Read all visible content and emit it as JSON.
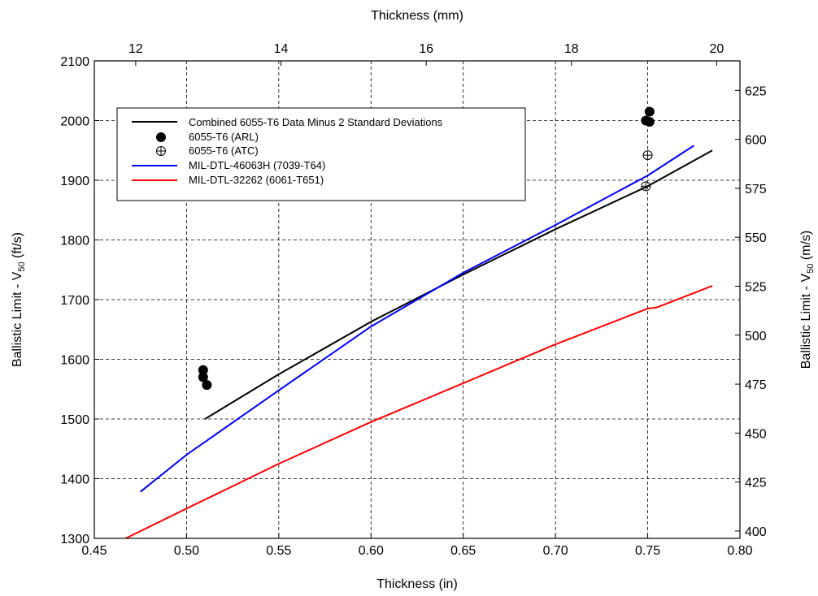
{
  "chart_data": {
    "type": "line",
    "title": "",
    "xlabel": "Thickness (in)",
    "x2label": "Thickness (mm)",
    "ylabel_main": "Ballistic Limit - V",
    "ylabel_sub": "50",
    "ylabel_unit": " (ft/s)",
    "y2label_main": "Ballistic Limit - V",
    "y2label_sub": "50",
    "y2label_unit": " (m/s)",
    "xlim": [
      0.45,
      0.8
    ],
    "ylim": [
      1300,
      2100
    ],
    "x2lim_mm": [
      11.43,
      20.32
    ],
    "y2lim_ms": [
      396.24,
      640.08
    ],
    "x_ticks": [
      "0.45",
      "0.50",
      "0.55",
      "0.60",
      "0.65",
      "0.70",
      "0.75",
      "0.80"
    ],
    "y_ticks": [
      "1300",
      "1400",
      "1500",
      "1600",
      "1700",
      "1800",
      "1900",
      "2000",
      "2100"
    ],
    "x2_ticks": [
      "12",
      "14",
      "16",
      "18",
      "20"
    ],
    "y2_ticks": [
      "400",
      "425",
      "450",
      "475",
      "500",
      "525",
      "550",
      "575",
      "600",
      "625"
    ],
    "grid": true,
    "legend_position": "top-left",
    "series": [
      {
        "name": "Combined 6055-T6 Data Minus 2 Standard Deviations",
        "kind": "line",
        "color": "#000000",
        "x": [
          0.51,
          0.55,
          0.6,
          0.65,
          0.7,
          0.75,
          0.785
        ],
        "y": [
          1500,
          1575,
          1663,
          1742,
          1818,
          1890,
          1950
        ]
      },
      {
        "name": "6055-T6 (ARL)",
        "kind": "scatter",
        "marker": "filled-circle",
        "color": "#000000",
        "x": [
          0.509,
          0.509,
          0.511,
          0.749,
          0.751,
          0.751
        ],
        "y": [
          1582,
          1570,
          1557,
          2000,
          1998,
          2015
        ]
      },
      {
        "name": "6055-T6 (ATC)",
        "kind": "scatter",
        "marker": "circle-plus",
        "color": "#000000",
        "x": [
          0.75,
          0.749
        ],
        "y": [
          1942,
          1890
        ]
      },
      {
        "name": "MIL-DTL-46063H (7039-T64)",
        "kind": "line",
        "color": "#0000ff",
        "x": [
          0.475,
          0.5,
          0.55,
          0.6,
          0.65,
          0.7,
          0.75,
          0.775
        ],
        "y": [
          1378,
          1440,
          1548,
          1655,
          1745,
          1825,
          1908,
          1958
        ]
      },
      {
        "name": "MIL-DTL-32262 (6061-T651)",
        "kind": "line",
        "color": "#ff0000",
        "x": [
          0.467,
          0.5,
          0.55,
          0.6,
          0.65,
          0.7,
          0.75,
          0.755,
          0.785
        ],
        "y": [
          1300,
          1350,
          1425,
          1495,
          1560,
          1625,
          1685,
          1687,
          1723
        ]
      }
    ]
  }
}
